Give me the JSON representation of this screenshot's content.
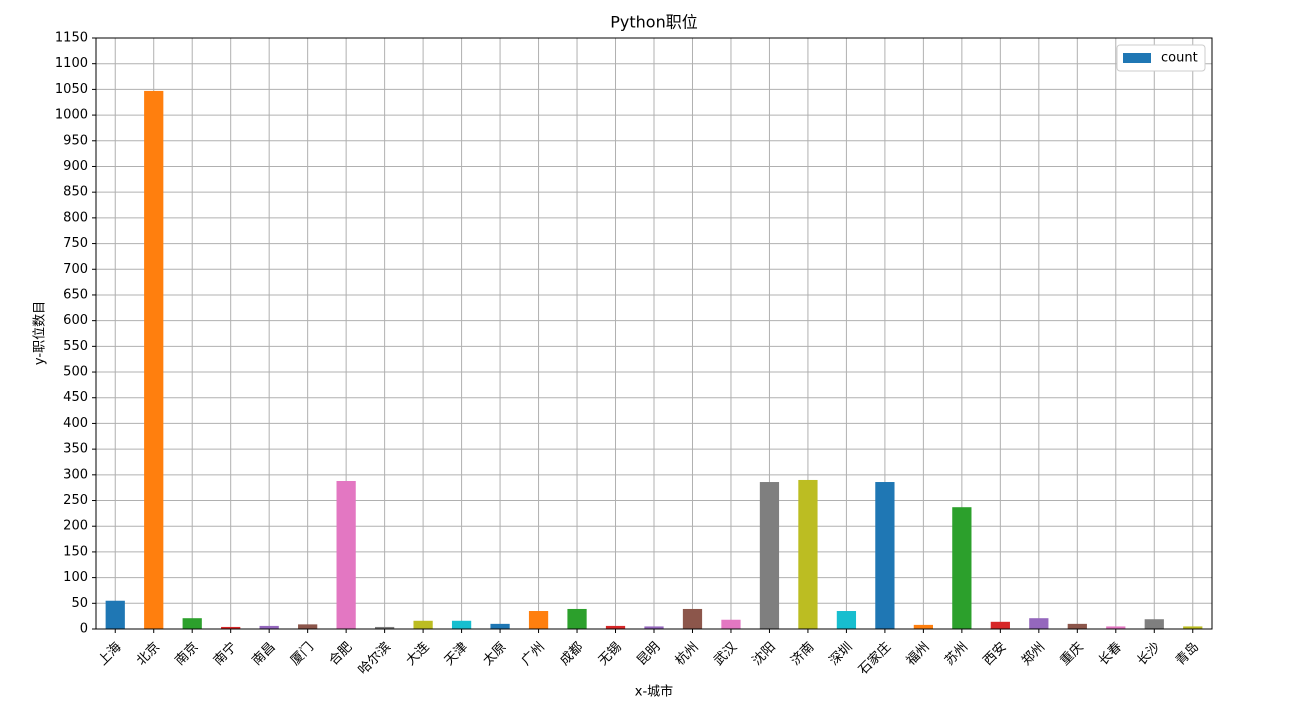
{
  "chart_data": {
    "type": "bar",
    "title": "Python职位",
    "x_label": "x-城市",
    "y_label": "y-职位数目",
    "categories": [
      "上海",
      "北京",
      "南京",
      "南宁",
      "南昌",
      "厦门",
      "合肥",
      "哈尔滨",
      "大连",
      "天津",
      "太原",
      "广州",
      "成都",
      "无锡",
      "昆明",
      "杭州",
      "武汉",
      "沈阳",
      "济南",
      "深圳",
      "石家庄",
      "福州",
      "苏州",
      "西安",
      "郑州",
      "重庆",
      "长春",
      "长沙",
      "青岛"
    ],
    "series": [
      {
        "name": "count",
        "color": "#1f77b4",
        "values": [
          55,
          1047,
          21,
          4,
          6,
          9,
          288,
          4,
          16,
          16,
          10,
          35,
          39,
          6,
          5,
          39,
          18,
          286,
          290,
          35,
          286,
          8,
          237,
          14,
          21,
          10,
          5,
          19,
          5
        ],
        "bar_colors": [
          "#1f77b4",
          "#ff7f0e",
          "#2ca02c",
          "#d62728",
          "#9467bd",
          "#8c564b",
          "#e377c2",
          "#7f7f7f",
          "#bcbd22",
          "#17becf"
        ]
      }
    ],
    "ylim": [
      0,
      1150
    ],
    "yticks": [
      0,
      50,
      100,
      150,
      200,
      250,
      300,
      350,
      400,
      450,
      500,
      550,
      600,
      650,
      700,
      750,
      800,
      850,
      900,
      950,
      1000,
      1050,
      1100,
      1150
    ],
    "grid": true,
    "legend": "upper-right"
  }
}
